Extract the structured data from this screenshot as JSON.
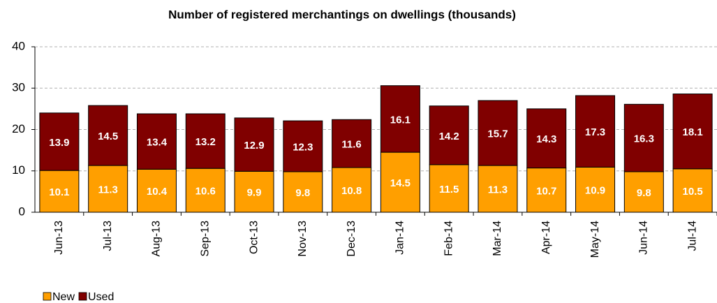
{
  "chart_data": {
    "type": "bar",
    "stacked": true,
    "title": "Number of registered merchantings on dwellings (thousands)",
    "categories": [
      "Jun-13",
      "Jul-13",
      "Aug-13",
      "Sep-13",
      "Oct-13",
      "Nov-13",
      "Dec-13",
      "Jan-14",
      "Feb-14",
      "Mar-14",
      "Apr-14",
      "May-14",
      "Jun-14",
      "Jul-14"
    ],
    "series": [
      {
        "name": "New",
        "color": "#ff9f00",
        "values": [
          10.1,
          11.3,
          10.4,
          10.6,
          9.9,
          9.8,
          10.8,
          14.5,
          11.5,
          11.3,
          10.7,
          10.9,
          9.8,
          10.5
        ]
      },
      {
        "name": "Used",
        "color": "#800000",
        "values": [
          13.9,
          14.5,
          13.4,
          13.2,
          12.9,
          12.3,
          11.6,
          16.1,
          14.2,
          15.7,
          14.3,
          17.3,
          16.3,
          18.1
        ]
      }
    ],
    "ylim": [
      0,
      40
    ],
    "yticks": [
      0,
      10,
      20,
      30,
      40
    ],
    "grid": true,
    "legend": "bottom-left"
  }
}
